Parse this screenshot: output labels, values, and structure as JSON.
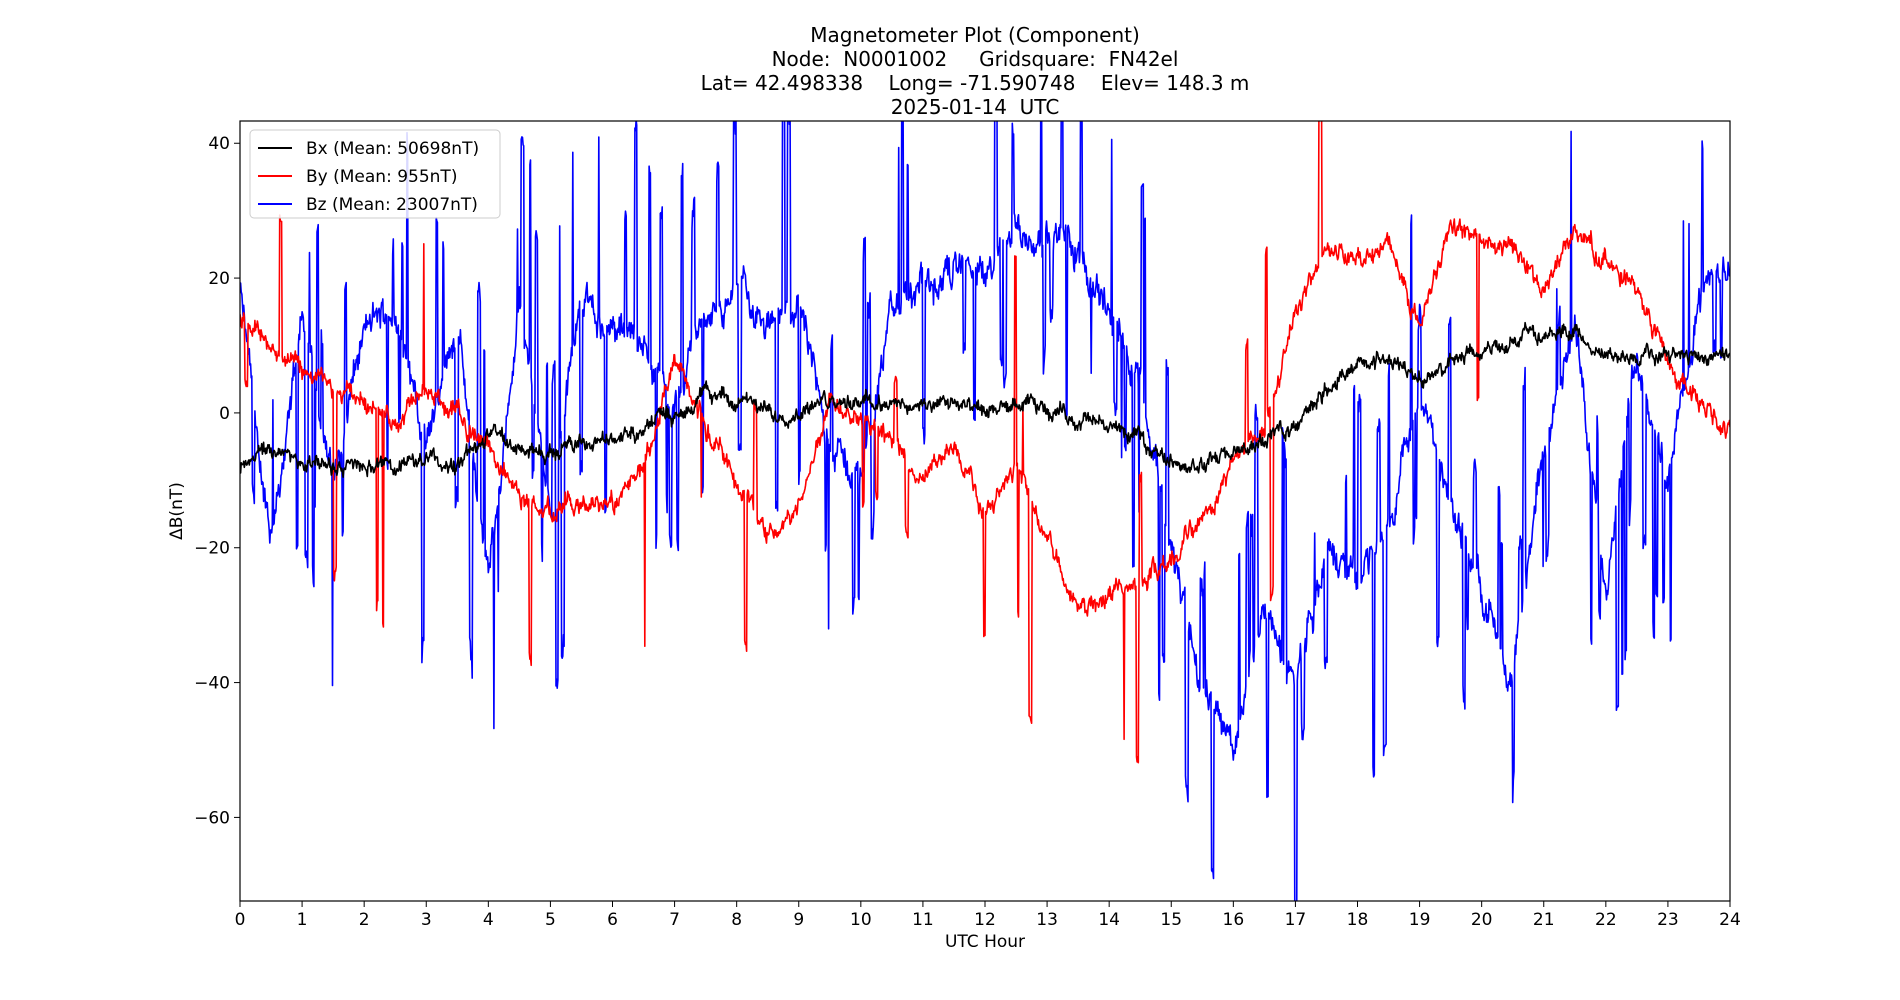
{
  "chart_data": {
    "type": "line",
    "title": [
      "Magnetometer Plot (Component)",
      "Node:  N0001002     Gridsquare:  FN42el",
      "Lat= 42.498338    Long= -71.590748    Elev= 148.3 m",
      "2025-01-14  UTC"
    ],
    "xlabel": "UTC Hour",
    "ylabel": "ΔB(nT)",
    "xlim": [
      0,
      24
    ],
    "ylim": [
      -72.4,
      43.3
    ],
    "xticks": [
      0,
      1,
      2,
      3,
      4,
      5,
      6,
      7,
      8,
      9,
      10,
      11,
      12,
      13,
      14,
      15,
      16,
      17,
      18,
      19,
      20,
      21,
      22,
      23,
      24
    ],
    "yticks": [
      40,
      20,
      0,
      -20,
      -40,
      -60
    ],
    "ytick_labels": [
      "40",
      "20",
      "0",
      "−20",
      "−40",
      "−60"
    ],
    "grid": false,
    "legend_placement": "top-left",
    "x": [
      0,
      0.5,
      1,
      1.5,
      2,
      2.5,
      3,
      3.5,
      4,
      4.5,
      5,
      5.5,
      6,
      6.5,
      7,
      7.5,
      8,
      8.5,
      9,
      9.5,
      10,
      10.5,
      11,
      11.5,
      12,
      12.5,
      13,
      13.5,
      14,
      14.5,
      15,
      15.5,
      16,
      16.5,
      17,
      17.5,
      18,
      18.5,
      19,
      19.5,
      20,
      20.5,
      21,
      21.5,
      22,
      22.5,
      23,
      23.5,
      24
    ],
    "series": [
      {
        "name": "Bx (Mean: 50698nT)",
        "color": "#000000",
        "values": [
          -8,
          -5,
          -7,
          -8,
          -8,
          -8,
          -7,
          -8,
          -3,
          -5,
          -6,
          -4,
          -4,
          -2,
          0,
          3,
          2,
          0,
          0,
          2,
          2,
          1,
          1,
          1,
          0,
          1,
          1,
          -1,
          -2,
          -4,
          -7,
          -8,
          -6,
          -4,
          -2,
          4,
          7,
          8,
          5,
          7,
          9,
          11,
          12,
          12,
          8,
          8,
          9,
          8,
          9
        ]
      },
      {
        "name": "By (Mean: 955nT)",
        "color": "#ff0000",
        "values": [
          15,
          10,
          6,
          3,
          2,
          -1,
          3,
          0,
          -5,
          -12,
          -15,
          -14,
          -14,
          -8,
          8,
          -2,
          -10,
          -18,
          -14,
          2,
          0,
          -5,
          -10,
          -5,
          -15,
          -8,
          -18,
          -28,
          -27,
          -25,
          -22,
          -15,
          -7,
          -2,
          15,
          25,
          22,
          25,
          13,
          28,
          26,
          24,
          18,
          27,
          22,
          18,
          8,
          2,
          -2
        ]
      },
      {
        "name": "Bz (Mean: 23007nT)",
        "color": "#0000ff",
        "values": [
          18,
          -20,
          15,
          -10,
          12,
          16,
          -5,
          14,
          -25,
          15,
          -15,
          18,
          12,
          10,
          0,
          15,
          18,
          14,
          15,
          -5,
          -10,
          15,
          18,
          22,
          20,
          27,
          26,
          25,
          15,
          5,
          -20,
          -40,
          -50,
          -30,
          -40,
          -20,
          -25,
          -15,
          3,
          -15,
          -25,
          -40,
          -5,
          12,
          -25,
          10,
          -10,
          18,
          22
        ]
      }
    ]
  }
}
